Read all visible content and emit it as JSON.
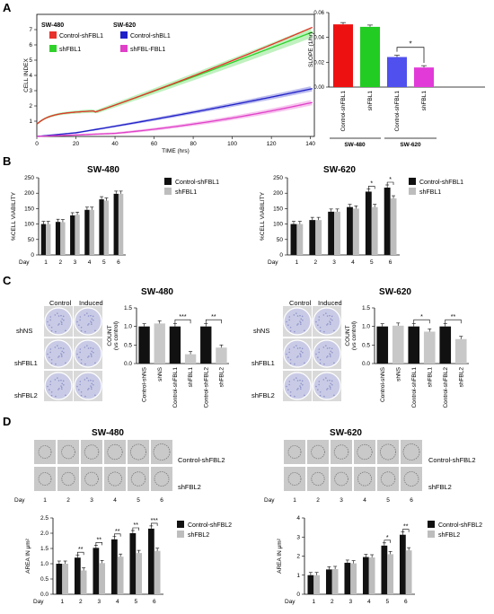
{
  "panels": {
    "a": "A",
    "b": "B",
    "c": "C",
    "d": "D"
  },
  "panelA": {
    "line": {
      "group_labels": [
        "SW-480",
        "SW-620"
      ],
      "legend": [
        {
          "label": "Control-shFBL1",
          "color": "#e8312a"
        },
        {
          "label": "shFBL1",
          "color": "#2fd22a"
        },
        {
          "label": "Control-shBL1",
          "color": "#2020c8"
        },
        {
          "label": "shFBL-FBL1",
          "color": "#e040c8"
        }
      ],
      "ylabel": "CELL INDEX",
      "xlabel": "TIME (hrs)",
      "xticks": [
        0,
        20,
        40,
        60,
        80,
        100,
        120,
        140
      ],
      "yticks": [
        1,
        2,
        3,
        4,
        5,
        6,
        7
      ],
      "xlim": [
        0,
        142
      ],
      "ylim": [
        0,
        8
      ]
    },
    "bar": {
      "ylabel": "SLOPE (1/hr)",
      "yticks": [
        "0.00",
        "0.02",
        "0.04",
        "0.06"
      ],
      "ylim": [
        0,
        0.06
      ],
      "categories": [
        "Control-shFBL1",
        "shFBL1",
        "Control-shFBL1",
        "shFBL1"
      ],
      "values": [
        0.0505,
        0.0485,
        0.0242,
        0.0158
      ],
      "colors": [
        "#ee1111",
        "#22cc22",
        "#5050ee",
        "#e23ad8"
      ],
      "groups": [
        "SW-480",
        "SW-620"
      ],
      "sig": "*"
    }
  },
  "panelB": {
    "left": {
      "title": "SW-480",
      "ylabel": "%CELL VIABILITY",
      "day_label": "Day",
      "days": [
        "1",
        "2",
        "3",
        "4",
        "5",
        "6"
      ],
      "legend": [
        "Control-shFBL1",
        "shFBL1"
      ],
      "yticks": [
        0,
        50,
        100,
        150,
        200,
        250
      ],
      "series": [
        {
          "name": "Control-shFBL1",
          "values": [
            100,
            107,
            128,
            146,
            180,
            198
          ]
        },
        {
          "name": "shFBL1",
          "values": [
            100,
            106,
            130,
            146,
            176,
            198
          ]
        }
      ],
      "sig": []
    },
    "right": {
      "title": "SW-620",
      "ylabel": "%CELL VIABILITY",
      "day_label": "Day",
      "days": [
        "1",
        "2",
        "3",
        "4",
        "5",
        "6"
      ],
      "legend": [
        "Control-shFBL1",
        "shFBL1"
      ],
      "yticks": [
        0,
        50,
        100,
        150,
        200,
        250
      ],
      "series": [
        {
          "name": "Control-shFBL1",
          "values": [
            100,
            113,
            140,
            155,
            205,
            218
          ]
        },
        {
          "name": "shFBL1",
          "values": [
            100,
            113,
            140,
            150,
            155,
            183
          ]
        }
      ],
      "sig": [
        "*",
        "*"
      ]
    }
  },
  "panelC": {
    "left": {
      "title": "SW-480",
      "col_labels": [
        "Control",
        "Induced"
      ],
      "row_labels": [
        "shNS",
        "shFBL1",
        "shFBL2"
      ],
      "ylabel": "COUNT",
      "ylabel2": "(vs control)",
      "yticks": [
        "0.0",
        "0.5",
        "1.0",
        "1.5"
      ],
      "categories": [
        "Control-shNS",
        "shNS",
        "Control-shFBL1",
        "shFBL1",
        "Control-shFBL2",
        "shFBL2"
      ],
      "values": [
        1.0,
        1.08,
        1.0,
        0.25,
        1.0,
        0.43
      ],
      "sig": [
        "***",
        "**"
      ]
    },
    "right": {
      "title": "SW-620",
      "col_labels": [
        "Control",
        "Induced"
      ],
      "row_labels": [
        "shNS",
        "shFBL1",
        "shFBL2"
      ],
      "ylabel": "COUNT",
      "ylabel2": "(vs control)",
      "yticks": [
        "0.0",
        "0.5",
        "1.0",
        "1.5"
      ],
      "categories": [
        "Control-shNS",
        "shNS",
        "Control-shFBL1",
        "shFBL1",
        "Control-shFBL2",
        "shFBL2"
      ],
      "values": [
        1.0,
        1.02,
        1.0,
        0.86,
        1.0,
        0.66
      ],
      "sig": [
        "*",
        "**"
      ]
    }
  },
  "panelD": {
    "left": {
      "title": "SW-480",
      "row_labels": [
        "Control-shFBL2",
        "shFBL2"
      ],
      "day_label": "Day",
      "days": [
        "1",
        "2",
        "3",
        "4",
        "5",
        "6"
      ],
      "ylabel": "AREA IN μm²",
      "legend": [
        "Control-shFBL2",
        "shFBL2"
      ],
      "yticks": [
        "0.0",
        "0.5",
        "1.0",
        "1.5",
        "2.0",
        "2.5"
      ],
      "series": [
        {
          "name": "Control-shFBL2",
          "values": [
            1.0,
            1.2,
            1.52,
            1.8,
            2.0,
            2.15
          ]
        },
        {
          "name": "shFBL2",
          "values": [
            1.0,
            0.78,
            1.02,
            1.23,
            1.35,
            1.42
          ]
        }
      ],
      "sig": [
        "",
        "**",
        "**",
        "**",
        "**",
        "***"
      ]
    },
    "right": {
      "title": "SW-620",
      "row_labels": [
        "Control-shFBL2",
        "shFBL2"
      ],
      "day_label": "Day",
      "days": [
        "1",
        "2",
        "3",
        "4",
        "5",
        "6"
      ],
      "ylabel": "AREA IN μm²",
      "legend": [
        "Control-shFBL2",
        "shFBL2"
      ],
      "yticks": [
        "0",
        "1",
        "2",
        "3",
        "4"
      ],
      "series": [
        {
          "name": "Control-shFBL2",
          "values": [
            1.0,
            1.3,
            1.65,
            1.95,
            2.55,
            3.12
          ]
        },
        {
          "name": "shFBL2",
          "values": [
            1.0,
            1.32,
            1.62,
            1.93,
            2.1,
            2.3
          ]
        }
      ],
      "sig": [
        "",
        "",
        "",
        "",
        "*",
        "**"
      ]
    }
  }
}
